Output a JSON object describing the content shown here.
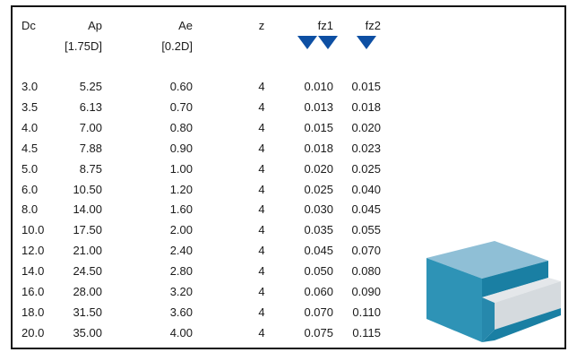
{
  "headers": {
    "dc": "Dc",
    "ap": "Ap",
    "ap_sub": "[1.75D]",
    "ae": "Ae",
    "ae_sub": "[0.2D]",
    "z": "z",
    "fz1": "fz1",
    "fz2": "fz2"
  },
  "icons": {
    "fz1_indicator": [
      "down-triangle-icon",
      "down-triangle-icon"
    ],
    "fz2_indicator": [
      "down-triangle-icon"
    ],
    "illustration": "stepped-block-illustration"
  },
  "colors": {
    "triangle": "#0d4fa3",
    "block_top": "#8fbfd6",
    "block_front": "#2e93b6",
    "block_side": "#1a7fa3",
    "step_cut": "#e4e7ea"
  },
  "rows": [
    {
      "dc": "3.0",
      "ap": "5.25",
      "ae": "0.60",
      "z": "4",
      "fz1": "0.010",
      "fz2": "0.015"
    },
    {
      "dc": "3.5",
      "ap": "6.13",
      "ae": "0.70",
      "z": "4",
      "fz1": "0.013",
      "fz2": "0.018"
    },
    {
      "dc": "4.0",
      "ap": "7.00",
      "ae": "0.80",
      "z": "4",
      "fz1": "0.015",
      "fz2": "0.020"
    },
    {
      "dc": "4.5",
      "ap": "7.88",
      "ae": "0.90",
      "z": "4",
      "fz1": "0.018",
      "fz2": "0.023"
    },
    {
      "dc": "5.0",
      "ap": "8.75",
      "ae": "1.00",
      "z": "4",
      "fz1": "0.020",
      "fz2": "0.025"
    },
    {
      "dc": "6.0",
      "ap": "10.50",
      "ae": "1.20",
      "z": "4",
      "fz1": "0.025",
      "fz2": "0.040"
    },
    {
      "dc": "8.0",
      "ap": "14.00",
      "ae": "1.60",
      "z": "4",
      "fz1": "0.030",
      "fz2": "0.045"
    },
    {
      "dc": "10.0",
      "ap": "17.50",
      "ae": "2.00",
      "z": "4",
      "fz1": "0.035",
      "fz2": "0.055"
    },
    {
      "dc": "12.0",
      "ap": "21.00",
      "ae": "2.40",
      "z": "4",
      "fz1": "0.045",
      "fz2": "0.070"
    },
    {
      "dc": "14.0",
      "ap": "24.50",
      "ae": "2.80",
      "z": "4",
      "fz1": "0.050",
      "fz2": "0.080"
    },
    {
      "dc": "16.0",
      "ap": "28.00",
      "ae": "3.20",
      "z": "4",
      "fz1": "0.060",
      "fz2": "0.090"
    },
    {
      "dc": "18.0",
      "ap": "31.50",
      "ae": "3.60",
      "z": "4",
      "fz1": "0.070",
      "fz2": "0.110"
    },
    {
      "dc": "20.0",
      "ap": "35.00",
      "ae": "4.00",
      "z": "4",
      "fz1": "0.075",
      "fz2": "0.115"
    }
  ]
}
